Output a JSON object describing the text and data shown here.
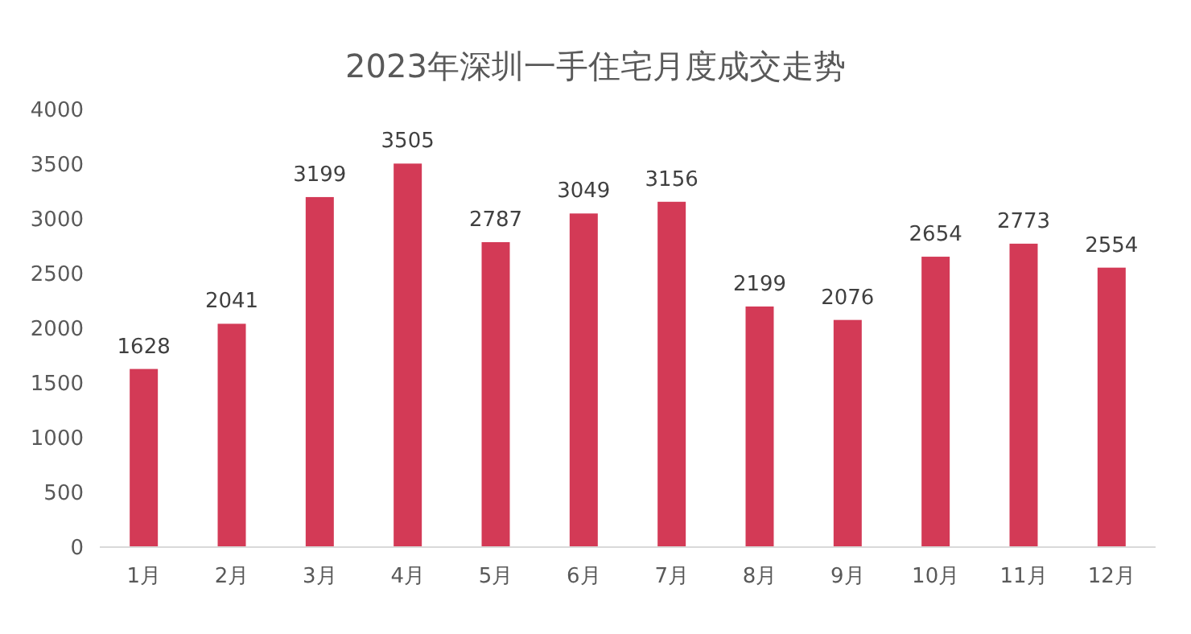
{
  "chart_data": {
    "type": "bar",
    "title": "2023年深圳一手住宅月度成交走势",
    "categories": [
      "1月",
      "2月",
      "3月",
      "4月",
      "5月",
      "6月",
      "7月",
      "8月",
      "9月",
      "10月",
      "11月",
      "12月"
    ],
    "values": [
      1628,
      2041,
      3199,
      3505,
      2787,
      3049,
      3156,
      2199,
      2076,
      2654,
      2773,
      2554
    ],
    "color": "#d33a56",
    "ylim": [
      0,
      4000
    ],
    "yticks": [
      0,
      500,
      1000,
      1500,
      2000,
      2500,
      3000,
      3500,
      4000
    ],
    "grid": false,
    "data_labels": true
  }
}
